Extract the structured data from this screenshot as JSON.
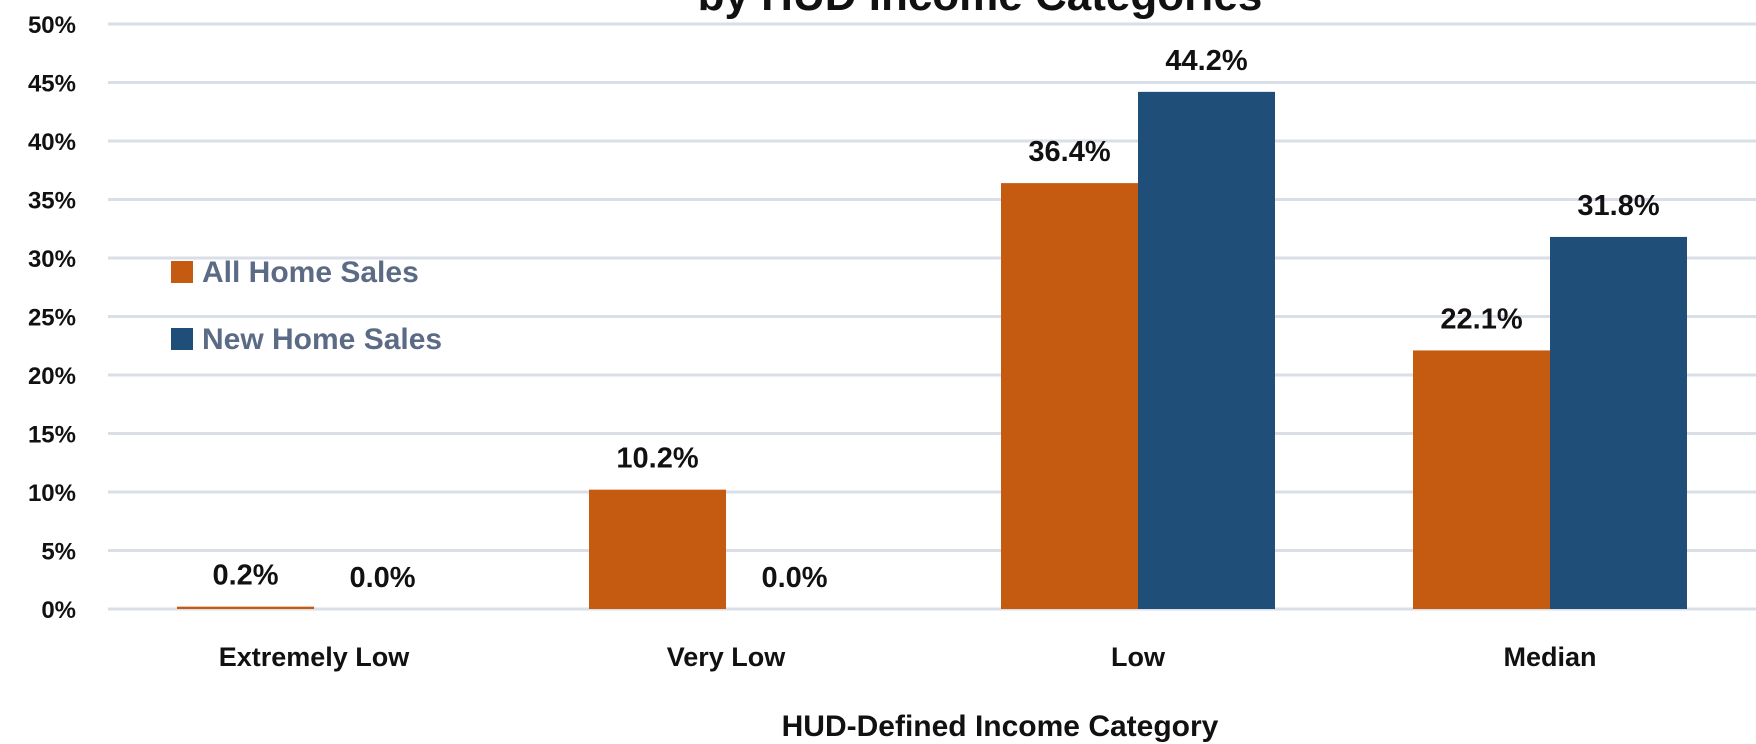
{
  "chart_data": {
    "type": "bar",
    "title": "by HUD Income Categories",
    "xlabel": "HUD-Defined Income Category",
    "ylabel": "",
    "categories": [
      "Extremely Low",
      "Very Low",
      "Low",
      "Median"
    ],
    "series": [
      {
        "name": "All Home Sales",
        "values": [
          0.2,
          10.2,
          36.4,
          22.1
        ],
        "labels": [
          "0.2%",
          "10.2%",
          "36.4%",
          "22.1%"
        ],
        "color": "#C55A11"
      },
      {
        "name": "New Home Sales",
        "values": [
          0.0,
          0.0,
          44.2,
          31.8
        ],
        "labels": [
          "0.0%",
          "0.0%",
          "44.2%",
          "31.8%"
        ],
        "color": "#1F4E79"
      }
    ],
    "ylim": [
      0,
      50
    ],
    "yticks": [
      0,
      5,
      10,
      15,
      20,
      25,
      30,
      35,
      40,
      45,
      50
    ],
    "ytick_labels": [
      "0%",
      "5%",
      "10%",
      "15%",
      "20%",
      "25%",
      "30%",
      "35%",
      "40%",
      "45%",
      "50%"
    ],
    "grid": true,
    "gridline_color": "#D9DEE7",
    "legend_placement": "left",
    "legend_text_color": "#5B6B86"
  }
}
